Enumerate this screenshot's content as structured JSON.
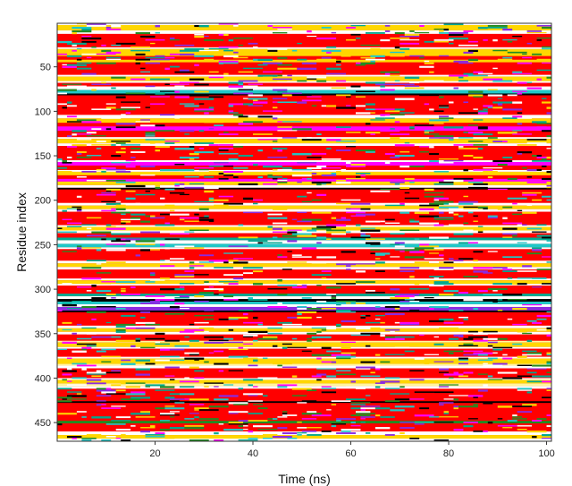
{
  "chart_data": {
    "type": "heatmap",
    "title": "",
    "xlabel": "Time (ns)",
    "ylabel": "Residue index",
    "xlim": [
      0,
      101
    ],
    "ylim": [
      1,
      471
    ],
    "y_inverted": true,
    "x_ticks": [
      20,
      40,
      60,
      80,
      100
    ],
    "y_ticks": [
      50,
      100,
      150,
      200,
      250,
      300,
      350,
      400,
      450
    ],
    "grid": false,
    "legend": "none",
    "palette": {
      "dominant_helix": "#ff0000",
      "yellow": "#ffd700",
      "light_yellow": "#fff6a0",
      "white": "#ffffff",
      "black": "#000000",
      "green": "#228b22",
      "teal": "#00a890",
      "cyan": "#20c8c8",
      "magenta": "#ff00ff",
      "violet": "#8a2be2"
    },
    "bands": [
      {
        "start": 1,
        "end": 3,
        "color": "#ffffff"
      },
      {
        "start": 3,
        "end": 9,
        "color": "#ffd700"
      },
      {
        "start": 9,
        "end": 13,
        "color": "#ffffff"
      },
      {
        "start": 13,
        "end": 28,
        "color": "#ff0000"
      },
      {
        "start": 28,
        "end": 30,
        "color": "#ffffff"
      },
      {
        "start": 30,
        "end": 38,
        "color": "#ffd700"
      },
      {
        "start": 38,
        "end": 42,
        "color": "#ff0000"
      },
      {
        "start": 42,
        "end": 45,
        "color": "#ffd700"
      },
      {
        "start": 45,
        "end": 59,
        "color": "#ff0000"
      },
      {
        "start": 59,
        "end": 61,
        "color": "#ffffff"
      },
      {
        "start": 61,
        "end": 66,
        "color": "#ffd700"
      },
      {
        "start": 66,
        "end": 68,
        "color": "#ffffff"
      },
      {
        "start": 68,
        "end": 72,
        "color": "#ff0000"
      },
      {
        "start": 72,
        "end": 76,
        "color": "#ffffff"
      },
      {
        "start": 76,
        "end": 80,
        "color": "#20c8c8"
      },
      {
        "start": 80,
        "end": 82,
        "color": "#000000"
      },
      {
        "start": 82,
        "end": 104,
        "color": "#ff0000"
      },
      {
        "start": 104,
        "end": 108,
        "color": "#ffffff"
      },
      {
        "start": 108,
        "end": 113,
        "color": "#ffd700"
      },
      {
        "start": 113,
        "end": 117,
        "color": "#ff0000"
      },
      {
        "start": 117,
        "end": 122,
        "color": "#ff00ff"
      },
      {
        "start": 122,
        "end": 129,
        "color": "#ff0000"
      },
      {
        "start": 129,
        "end": 131,
        "color": "#ffffff"
      },
      {
        "start": 131,
        "end": 136,
        "color": "#ffd700"
      },
      {
        "start": 136,
        "end": 139,
        "color": "#ffffff"
      },
      {
        "start": 139,
        "end": 155,
        "color": "#ff0000"
      },
      {
        "start": 155,
        "end": 157,
        "color": "#ffffff"
      },
      {
        "start": 157,
        "end": 161,
        "color": "#ff00ff"
      },
      {
        "start": 161,
        "end": 166,
        "color": "#ff0000"
      },
      {
        "start": 166,
        "end": 168,
        "color": "#ffffff"
      },
      {
        "start": 168,
        "end": 172,
        "color": "#ffd700"
      },
      {
        "start": 172,
        "end": 176,
        "color": "#ff0000"
      },
      {
        "start": 176,
        "end": 179,
        "color": "#ff00ff"
      },
      {
        "start": 179,
        "end": 183,
        "color": "#ffd700"
      },
      {
        "start": 183,
        "end": 186,
        "color": "#ffffff"
      },
      {
        "start": 186,
        "end": 188,
        "color": "#000000"
      },
      {
        "start": 188,
        "end": 203,
        "color": "#ff0000"
      },
      {
        "start": 203,
        "end": 206,
        "color": "#ffffff"
      },
      {
        "start": 206,
        "end": 210,
        "color": "#ffd700"
      },
      {
        "start": 210,
        "end": 213,
        "color": "#ffffff"
      },
      {
        "start": 213,
        "end": 228,
        "color": "#ff0000"
      },
      {
        "start": 228,
        "end": 230,
        "color": "#ffffff"
      },
      {
        "start": 230,
        "end": 234,
        "color": "#ffd700"
      },
      {
        "start": 234,
        "end": 237,
        "color": "#ffffff"
      },
      {
        "start": 237,
        "end": 242,
        "color": "#ff0000"
      },
      {
        "start": 242,
        "end": 245,
        "color": "#00a890"
      },
      {
        "start": 245,
        "end": 249,
        "color": "#ffffff"
      },
      {
        "start": 249,
        "end": 253,
        "color": "#20c8c8"
      },
      {
        "start": 253,
        "end": 255,
        "color": "#ffffff"
      },
      {
        "start": 255,
        "end": 268,
        "color": "#ff0000"
      },
      {
        "start": 268,
        "end": 271,
        "color": "#ffffff"
      },
      {
        "start": 271,
        "end": 275,
        "color": "#ffd700"
      },
      {
        "start": 275,
        "end": 278,
        "color": "#ffffff"
      },
      {
        "start": 278,
        "end": 288,
        "color": "#ff0000"
      },
      {
        "start": 288,
        "end": 290,
        "color": "#ffffff"
      },
      {
        "start": 290,
        "end": 294,
        "color": "#ffd700"
      },
      {
        "start": 294,
        "end": 296,
        "color": "#ffffff"
      },
      {
        "start": 296,
        "end": 305,
        "color": "#ff0000"
      },
      {
        "start": 305,
        "end": 308,
        "color": "#00a890"
      },
      {
        "start": 308,
        "end": 311,
        "color": "#ffffff"
      },
      {
        "start": 311,
        "end": 314,
        "color": "#000000"
      },
      {
        "start": 314,
        "end": 317,
        "color": "#20c8c8"
      },
      {
        "start": 317,
        "end": 320,
        "color": "#ffffff"
      },
      {
        "start": 320,
        "end": 324,
        "color": "#8a2be2"
      },
      {
        "start": 324,
        "end": 326,
        "color": "#000000"
      },
      {
        "start": 326,
        "end": 341,
        "color": "#ff0000"
      },
      {
        "start": 341,
        "end": 344,
        "color": "#ffffff"
      },
      {
        "start": 344,
        "end": 348,
        "color": "#ffd700"
      },
      {
        "start": 348,
        "end": 351,
        "color": "#ffffff"
      },
      {
        "start": 351,
        "end": 358,
        "color": "#ff0000"
      },
      {
        "start": 358,
        "end": 360,
        "color": "#fff6a0"
      },
      {
        "start": 360,
        "end": 365,
        "color": "#ffd700"
      },
      {
        "start": 365,
        "end": 367,
        "color": "#ffffff"
      },
      {
        "start": 367,
        "end": 376,
        "color": "#ff0000"
      },
      {
        "start": 376,
        "end": 378,
        "color": "#ffffff"
      },
      {
        "start": 378,
        "end": 384,
        "color": "#ffd700"
      },
      {
        "start": 384,
        "end": 386,
        "color": "#fff6a0"
      },
      {
        "start": 386,
        "end": 389,
        "color": "#ffffff"
      },
      {
        "start": 389,
        "end": 400,
        "color": "#ff0000"
      },
      {
        "start": 400,
        "end": 402,
        "color": "#ffffff"
      },
      {
        "start": 402,
        "end": 406,
        "color": "#ffd700"
      },
      {
        "start": 406,
        "end": 409,
        "color": "#fff6a0"
      },
      {
        "start": 409,
        "end": 412,
        "color": "#ffffff"
      },
      {
        "start": 412,
        "end": 426,
        "color": "#ff0000"
      },
      {
        "start": 426,
        "end": 428,
        "color": "#000000"
      },
      {
        "start": 428,
        "end": 448,
        "color": "#ff0000"
      },
      {
        "start": 448,
        "end": 451,
        "color": "#228b22"
      },
      {
        "start": 451,
        "end": 460,
        "color": "#ff0000"
      },
      {
        "start": 460,
        "end": 464,
        "color": "#ffffff"
      },
      {
        "start": 464,
        "end": 468,
        "color": "#ffd700"
      },
      {
        "start": 468,
        "end": 471,
        "color": "#ffffff"
      }
    ],
    "noise_colors": [
      "#000000",
      "#228b22",
      "#00a890",
      "#20c8c8",
      "#ff00ff",
      "#ffffff",
      "#ffd700",
      "#8a2be2"
    ],
    "noise_density": 0.09,
    "noise_seed": 7
  }
}
